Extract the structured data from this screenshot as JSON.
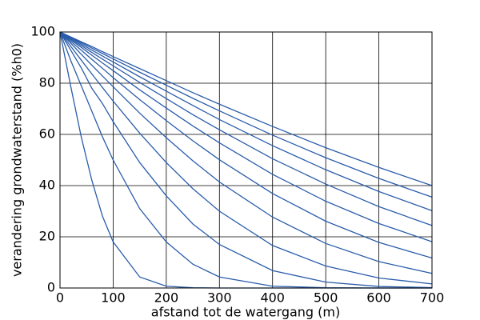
{
  "chart_data": {
    "type": "line",
    "xlabel": "afstand tot de watergang (m)",
    "ylabel": "verandering grondwaterstand (%h0)",
    "x": [
      0,
      20,
      40,
      60,
      80,
      100,
      150,
      200,
      250,
      300,
      400,
      500,
      600,
      700
    ],
    "series": [
      {
        "color": "#2a5caa",
        "values": [
          100,
          79,
          59,
          42,
          28,
          18,
          4.3,
          0.7,
          0.1,
          0,
          0,
          0,
          0,
          0
        ]
      },
      {
        "color": "#2a5caa",
        "values": [
          100,
          89,
          79,
          69,
          59,
          50,
          31,
          18,
          9.3,
          4.3,
          0.7,
          0.1,
          0,
          0
        ]
      },
      {
        "color": "#2a5caa",
        "values": [
          100,
          93,
          86,
          78,
          72,
          65,
          49,
          36,
          25,
          17,
          6.8,
          2.3,
          0.6,
          0.15
        ]
      },
      {
        "color": "#2a5caa",
        "values": [
          100,
          94.5,
          89,
          83.6,
          78.3,
          73,
          60.5,
          49,
          38.8,
          30,
          16.6,
          8.6,
          3.9,
          1.6
        ]
      },
      {
        "color": "#2a5caa",
        "values": [
          100,
          95.7,
          91.3,
          87,
          82.8,
          78.6,
          68.3,
          58.7,
          49.7,
          41.4,
          27.7,
          17.4,
          10.3,
          5.7
        ]
      },
      {
        "color": "#2a5caa",
        "values": [
          100,
          96.4,
          92.9,
          89.3,
          85.8,
          82.2,
          73.6,
          65.4,
          57.5,
          50.1,
          36.9,
          26.1,
          17.8,
          11.7
        ]
      },
      {
        "color": "#2a5caa",
        "values": [
          100,
          97,
          94,
          90.9,
          87.9,
          84.9,
          77.4,
          70.3,
          63.3,
          56.7,
          44.4,
          33.9,
          25.2,
          18.1
        ]
      },
      {
        "color": "#2a5caa",
        "values": [
          100,
          97.3,
          94.7,
          92,
          89.4,
          86.8,
          80.3,
          74,
          67.7,
          61.8,
          50.5,
          40.6,
          31.8,
          24.4
        ]
      },
      {
        "color": "#2a5caa",
        "values": [
          100,
          97.7,
          95.3,
          92.9,
          90.6,
          88.3,
          82.5,
          76.9,
          71.3,
          65.8,
          55.6,
          46.2,
          37.7,
          30.2
        ]
      },
      {
        "color": "#2a5caa",
        "values": [
          100,
          97.9,
          95.8,
          93.7,
          91.6,
          89.5,
          84.3,
          79.2,
          74.1,
          69.2,
          59.7,
          50.9,
          42.8,
          35.5
        ]
      },
      {
        "color": "#2a5caa",
        "values": [
          100,
          98.1,
          96.2,
          94.3,
          92.3,
          90.4,
          85.7,
          81,
          76.3,
          71.8,
          63.1,
          54.8,
          47.1,
          40
        ]
      }
    ],
    "xlim": [
      0,
      700
    ],
    "xticks": [
      0,
      100,
      200,
      300,
      400,
      500,
      600,
      700
    ],
    "ylim": [
      0,
      100
    ],
    "yticks": [
      0,
      20,
      40,
      60,
      80,
      100
    ],
    "grid": true
  }
}
